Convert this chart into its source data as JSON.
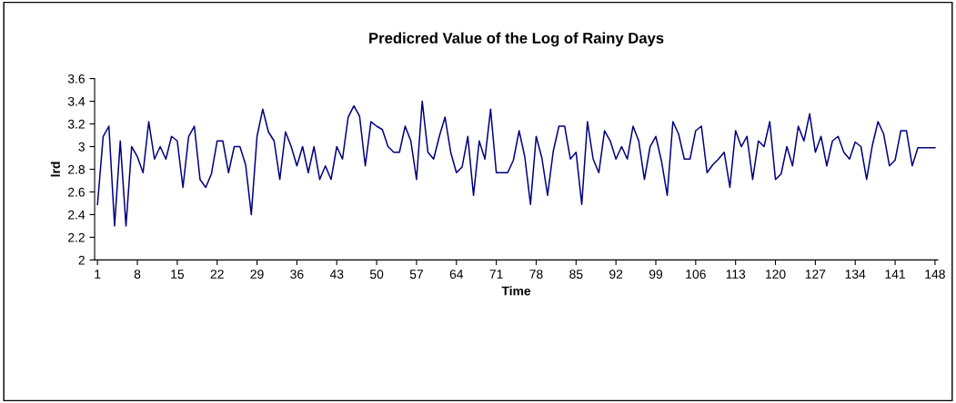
{
  "chart_data": {
    "type": "line",
    "title": "Predicred Value of the Log of Rainy Days",
    "xlabel": "Time",
    "ylabel": "lrd",
    "x": [
      1,
      2,
      3,
      4,
      5,
      6,
      7,
      8,
      9,
      10,
      11,
      12,
      13,
      14,
      15,
      16,
      17,
      18,
      19,
      20,
      21,
      22,
      23,
      24,
      25,
      26,
      27,
      28,
      29,
      30,
      31,
      32,
      33,
      34,
      35,
      36,
      37,
      38,
      39,
      40,
      41,
      42,
      43,
      44,
      45,
      46,
      47,
      48,
      49,
      50,
      51,
      52,
      53,
      54,
      55,
      56,
      57,
      58,
      59,
      60,
      61,
      62,
      63,
      64,
      65,
      66,
      67,
      68,
      69,
      70,
      71,
      72,
      73,
      74,
      75,
      76,
      77,
      78,
      79,
      80,
      81,
      82,
      83,
      84,
      85,
      86,
      87,
      88,
      89,
      90,
      91,
      92,
      93,
      94,
      95,
      96,
      97,
      98,
      99,
      100,
      101,
      102,
      103,
      104,
      105,
      106,
      107,
      108,
      109,
      110,
      111,
      112,
      113,
      114,
      115,
      116,
      117,
      118,
      119,
      120,
      121,
      122,
      123,
      124,
      125,
      126,
      127,
      128,
      129,
      130,
      131,
      132,
      133,
      134,
      135,
      136,
      137,
      138,
      139,
      140,
      141,
      142,
      143,
      144,
      145,
      146,
      147,
      148
    ],
    "series": [
      {
        "color": "#000080",
        "values": [
          2.49,
          3.09,
          3.18,
          2.3,
          3.05,
          2.3,
          3.0,
          2.91,
          2.77,
          3.22,
          2.89,
          3.0,
          2.89,
          3.09,
          3.05,
          2.64,
          3.09,
          3.18,
          2.71,
          2.64,
          2.76,
          3.05,
          3.05,
          2.77,
          3.0,
          3.0,
          2.84,
          2.4,
          3.09,
          3.33,
          3.13,
          3.05,
          2.71,
          3.13,
          3.0,
          2.83,
          3.0,
          2.77,
          3.0,
          2.71,
          2.83,
          2.71,
          3.0,
          2.89,
          3.26,
          3.36,
          3.27,
          2.83,
          3.22,
          3.18,
          3.15,
          3.0,
          2.95,
          2.95,
          3.18,
          3.05,
          2.71,
          3.4,
          2.95,
          2.89,
          3.09,
          3.26,
          2.95,
          2.77,
          2.82,
          3.09,
          2.57,
          3.05,
          2.89,
          3.33,
          2.77,
          2.77,
          2.77,
          2.88,
          3.14,
          2.91,
          2.49,
          3.09,
          2.9,
          2.57,
          2.96,
          3.18,
          3.18,
          2.89,
          2.95,
          2.49,
          3.22,
          2.89,
          2.77,
          3.14,
          3.05,
          2.89,
          3.0,
          2.89,
          3.18,
          3.05,
          2.71,
          3.0,
          3.09,
          2.87,
          2.57,
          3.22,
          3.11,
          2.89,
          2.89,
          3.14,
          3.18,
          2.77,
          2.84,
          2.89,
          2.95,
          2.64,
          3.14,
          3.0,
          3.09,
          2.71,
          3.05,
          3.0,
          3.22,
          2.71,
          2.76,
          3.0,
          2.83,
          3.18,
          3.05,
          3.29,
          2.95,
          3.09,
          2.83,
          3.05,
          3.09,
          2.95,
          2.89,
          3.04,
          3.0,
          2.71,
          3.01,
          3.22,
          3.11,
          2.83,
          2.88,
          3.14,
          3.14,
          2.83,
          2.99,
          2.99,
          2.99,
          2.99
        ]
      }
    ],
    "xlim": [
      0.5,
      148.5
    ],
    "xticks": [
      1,
      8,
      15,
      22,
      29,
      36,
      43,
      50,
      57,
      64,
      71,
      78,
      85,
      92,
      99,
      106,
      113,
      120,
      127,
      134,
      141,
      148
    ],
    "ylim": [
      2,
      3.6
    ],
    "yticks": [
      2,
      {
        "value": 2.2,
        "label": "2.2"
      },
      {
        "value": 2.4,
        "label": "2.4"
      },
      {
        "value": 2.6,
        "label": "2.6"
      },
      {
        "value": 2.8,
        "label": "2.8"
      },
      3,
      {
        "value": 3.2,
        "label": "3.2"
      },
      {
        "value": 3.4,
        "label": "3.4"
      },
      {
        "value": 3.6,
        "label": "3.6"
      }
    ],
    "grid": false,
    "marker": "none",
    "line_style": "solid"
  }
}
